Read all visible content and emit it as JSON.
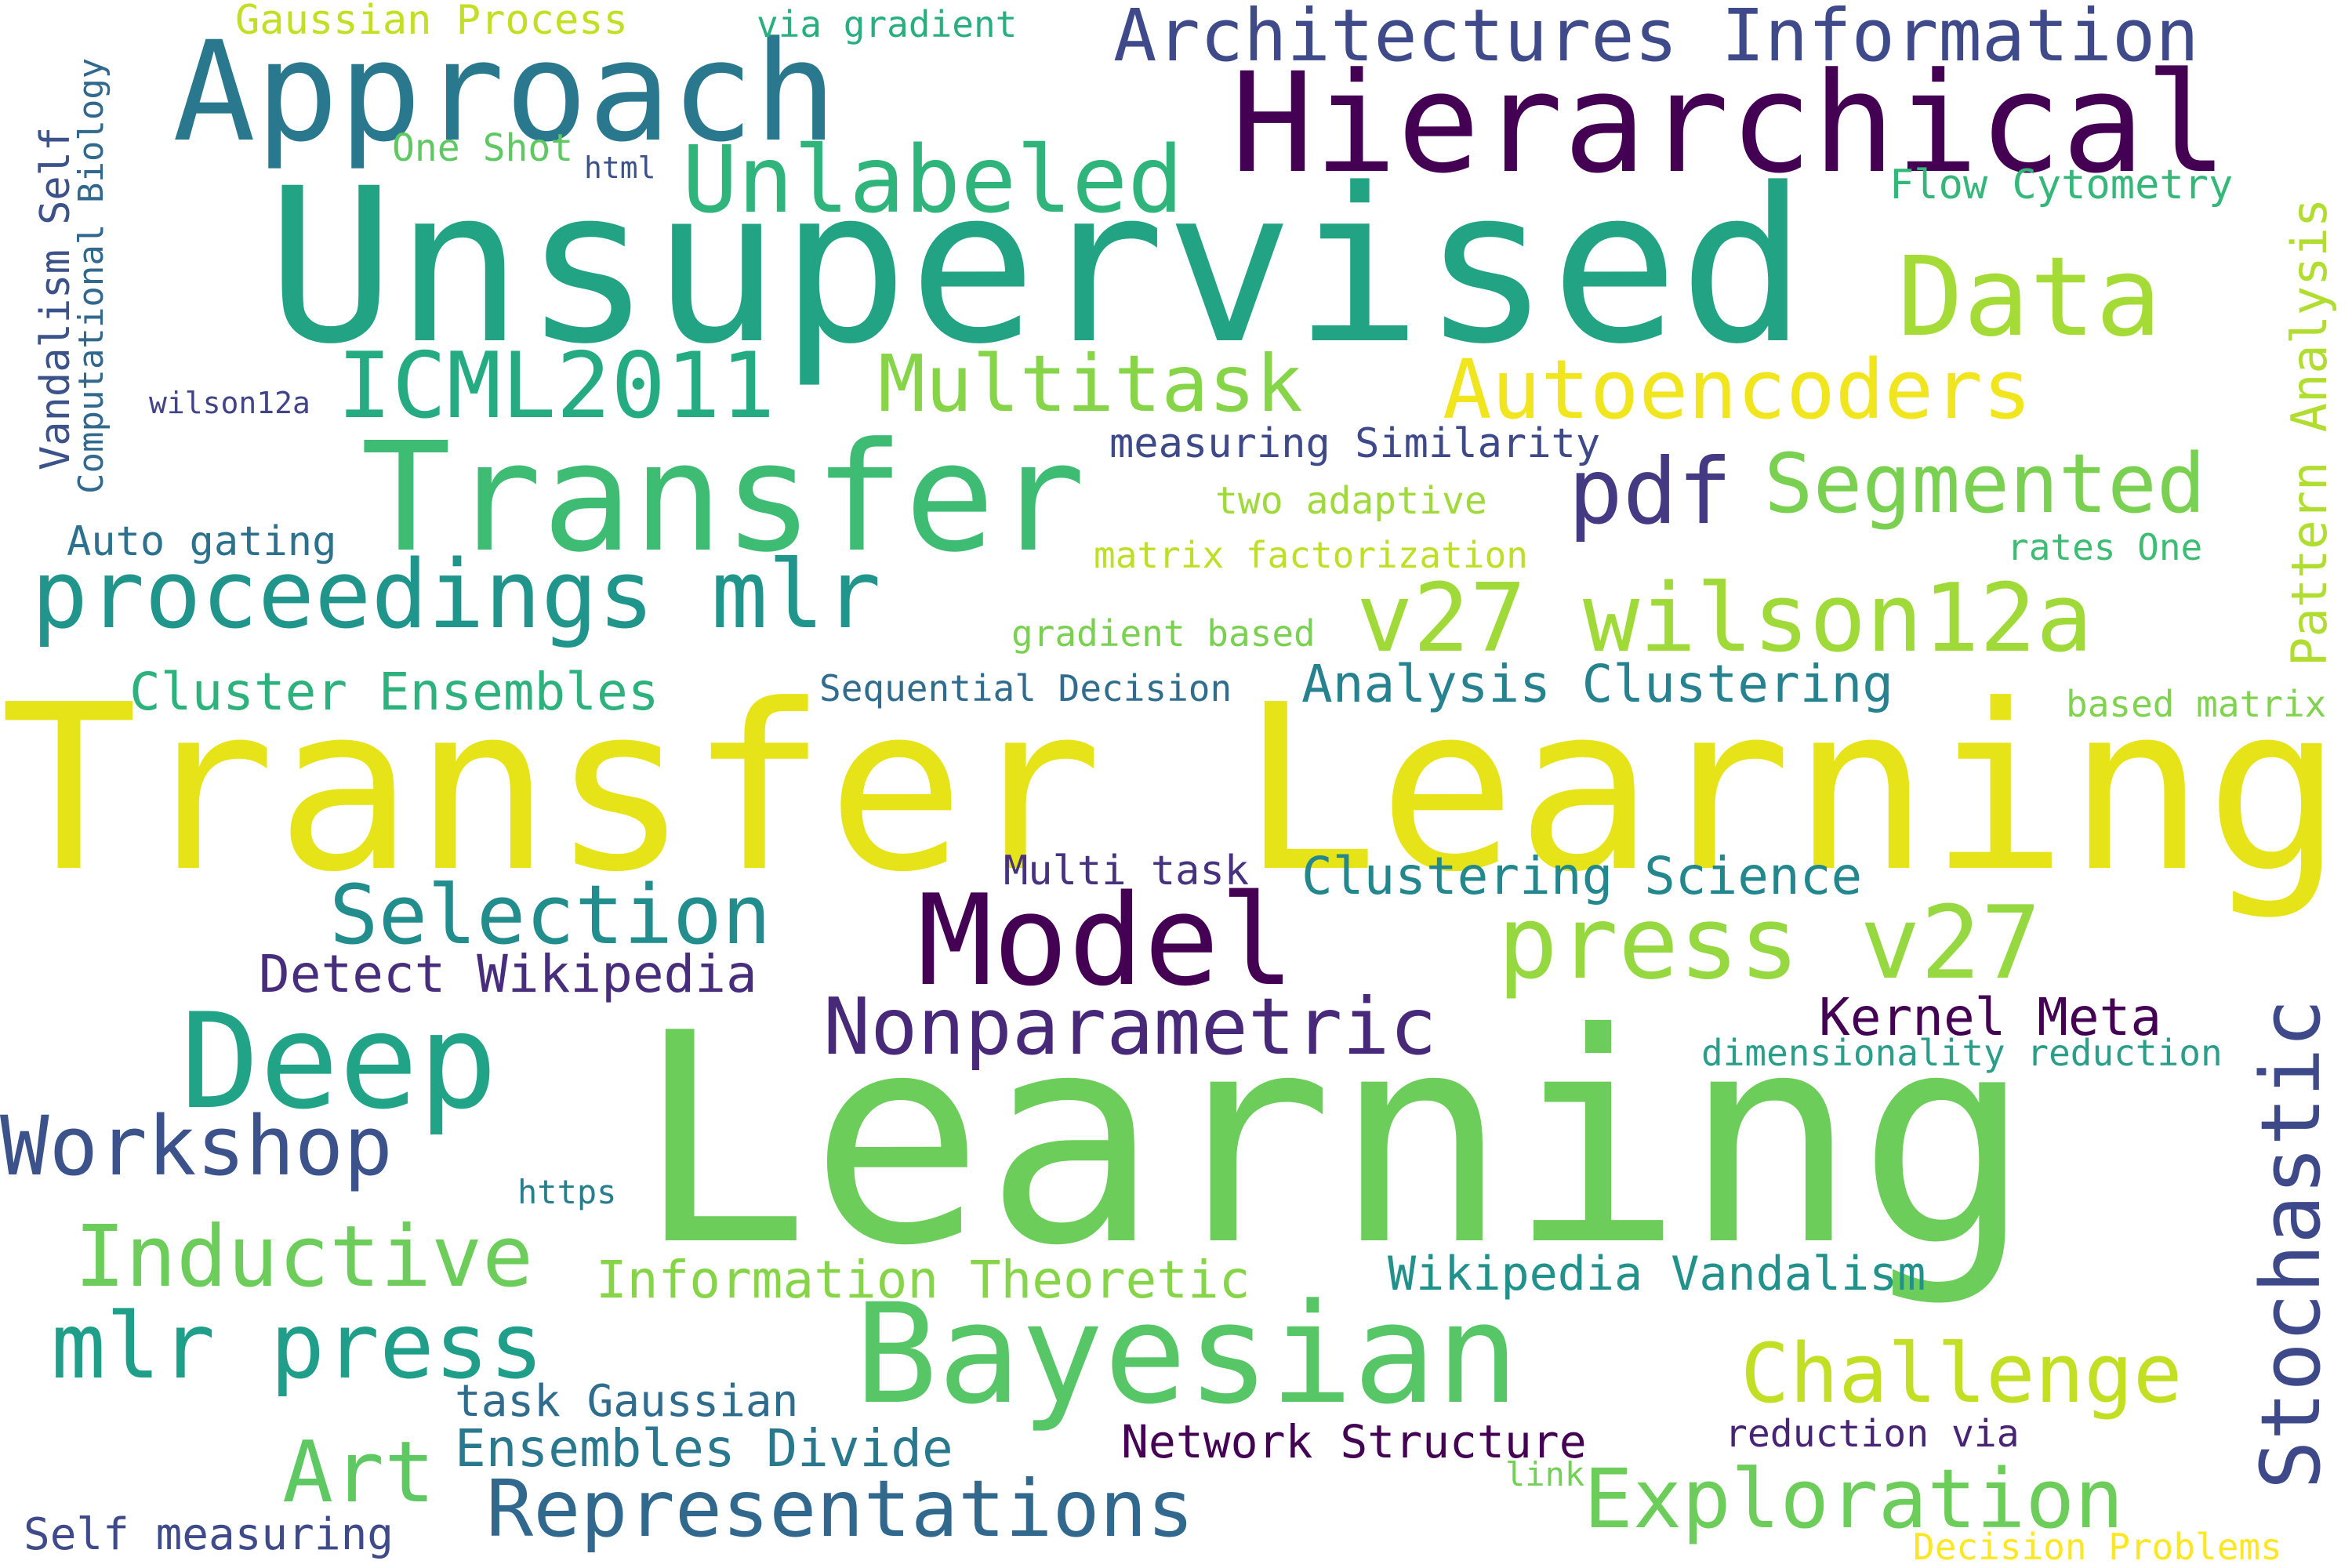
{
  "palette": {
    "dark_purple": "#440154",
    "indigo": "#3b2b7d",
    "slate_blue": "#3e4989",
    "steel_blue": "#31688e",
    "teal_blue": "#2a788e",
    "teal": "#21918c",
    "sea_green": "#22a884",
    "green": "#44bf70",
    "light_green": "#7ad151",
    "lime": "#a5db36",
    "yellow_green": "#c2df23",
    "yellow": "#fde725",
    "bright_yellow": "#e6e419"
  },
  "words": [
    {
      "text": "Transfer Learning",
      "color": "#e6e419"
    },
    {
      "text": "Learning",
      "color": "#6ccd5a"
    },
    {
      "text": "Unsupervised",
      "color": "#22a384"
    },
    {
      "text": "Transfer",
      "color": "#3fbc73"
    },
    {
      "text": "Hierarchical",
      "color": "#440154"
    },
    {
      "text": "Approach",
      "color": "#2a788e"
    },
    {
      "text": "Bayesian",
      "color": "#56c667"
    },
    {
      "text": "Deep",
      "color": "#20a386"
    },
    {
      "text": "Model",
      "color": "#440154"
    },
    {
      "text": "Data",
      "color": "#a5db36"
    },
    {
      "text": "Unlabeled",
      "color": "#2fb47c"
    },
    {
      "text": "Architectures Information",
      "color": "#3e4a89"
    },
    {
      "text": "ICML2011",
      "color": "#25ab82"
    },
    {
      "text": "Multitask",
      "color": "#86d549"
    },
    {
      "text": "Autoencoders",
      "color": "#f1e51d"
    },
    {
      "text": "pdf",
      "color": "#443983"
    },
    {
      "text": "Segmented",
      "color": "#7ad151"
    },
    {
      "text": "proceedings mlr",
      "color": "#1f958b"
    },
    {
      "text": "v27 wilson12a",
      "color": "#a0da39"
    },
    {
      "text": "Selection",
      "color": "#228d8d"
    },
    {
      "text": "press v27",
      "color": "#95d840"
    },
    {
      "text": "Nonparametric",
      "color": "#482878"
    },
    {
      "text": "Workshop",
      "color": "#3b528b"
    },
    {
      "text": "Inductive",
      "color": "#6ccd5a"
    },
    {
      "text": "mlr press",
      "color": "#1f9e89"
    },
    {
      "text": "Challenge",
      "color": "#c2df23"
    },
    {
      "text": "Exploration",
      "color": "#6ccd5a"
    },
    {
      "text": "Representations",
      "color": "#31688e"
    },
    {
      "text": "Art",
      "color": "#5ec962"
    },
    {
      "text": "Stochastic",
      "color": "#3e4989"
    },
    {
      "text": "Pattern Analysis",
      "color": "#b0dd2f"
    },
    {
      "text": "Vandalism Self",
      "color": "#3b528b"
    },
    {
      "text": "Computational Biology",
      "color": "#31688e"
    },
    {
      "text": "Gaussian Process",
      "color": "#c2df23"
    },
    {
      "text": "via gradient",
      "color": "#29af7f"
    },
    {
      "text": "One Shot",
      "color": "#5ec962"
    },
    {
      "text": "html",
      "color": "#3b528b"
    },
    {
      "text": "Flow Cytometry",
      "color": "#35b779"
    },
    {
      "text": "wilson12a",
      "color": "#414487"
    },
    {
      "text": "measuring Similarity",
      "color": "#3e4989"
    },
    {
      "text": "two adaptive",
      "color": "#9fda3a"
    },
    {
      "text": "Auto gating",
      "color": "#2c728e"
    },
    {
      "text": "matrix factorization",
      "color": "#bddf26"
    },
    {
      "text": "rates One",
      "color": "#3dbc74"
    },
    {
      "text": "gradient based",
      "color": "#7ad151"
    },
    {
      "text": "Cluster Ensembles",
      "color": "#2db27d"
    },
    {
      "text": "Sequential Decision",
      "color": "#2f6c8e"
    },
    {
      "text": "Analysis Clustering",
      "color": "#26828e"
    },
    {
      "text": "based matrix",
      "color": "#7fd34e"
    },
    {
      "text": "Multi task",
      "color": "#46327e"
    },
    {
      "text": "Clustering Science",
      "color": "#23888e"
    },
    {
      "text": "Detect Wikipedia",
      "color": "#472d7b"
    },
    {
      "text": "Kernel Meta",
      "color": "#440154"
    },
    {
      "text": "dimensionality reduction",
      "color": "#2a9e8a"
    },
    {
      "text": "https",
      "color": "#277f8e"
    },
    {
      "text": "Information Theoretic",
      "color": "#86d549"
    },
    {
      "text": "Wikipedia Vandalism",
      "color": "#21918c"
    },
    {
      "text": "task Gaussian",
      "color": "#2f6c8e"
    },
    {
      "text": "Ensembles Divide",
      "color": "#2a788e"
    },
    {
      "text": "Network Structure",
      "color": "#440154"
    },
    {
      "text": "reduction via",
      "color": "#482475"
    },
    {
      "text": "link",
      "color": "#73d056"
    },
    {
      "text": "Self measuring",
      "color": "#3e4a89"
    },
    {
      "text": "Decision Problems",
      "color": "#fde725"
    }
  ]
}
